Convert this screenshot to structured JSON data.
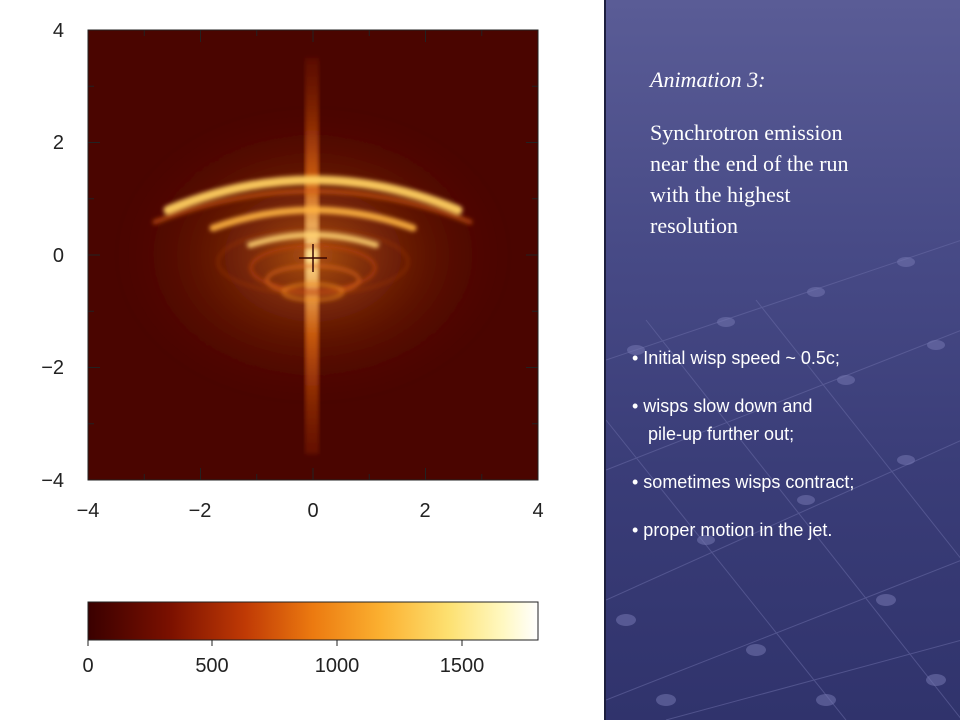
{
  "plot": {
    "x_ticks": [
      "−4",
      "−2",
      "0",
      "2",
      "4"
    ],
    "y_ticks": [
      "4",
      "2",
      "0",
      "−2",
      "−4"
    ]
  },
  "colorbar": {
    "ticks": [
      "0",
      "500",
      "1000",
      "1500"
    ]
  },
  "caption": {
    "title": "Animation 3:",
    "body": "Synchrotron emission near the end of the run with the highest resolution"
  },
  "bullets": [
    {
      "line1": "• Initial wisp speed ~ 0.5c;"
    },
    {
      "line1": "• wisps slow down and",
      "line2": "pile-up further out;"
    },
    {
      "line1": "• sometimes wisps contract;"
    },
    {
      "line1": "• proper motion in the jet."
    }
  ],
  "colors": {
    "panel_bg": "#474a86",
    "heatmap_dark": "#4a0500",
    "heatmap_bright": "#fff3a0"
  }
}
